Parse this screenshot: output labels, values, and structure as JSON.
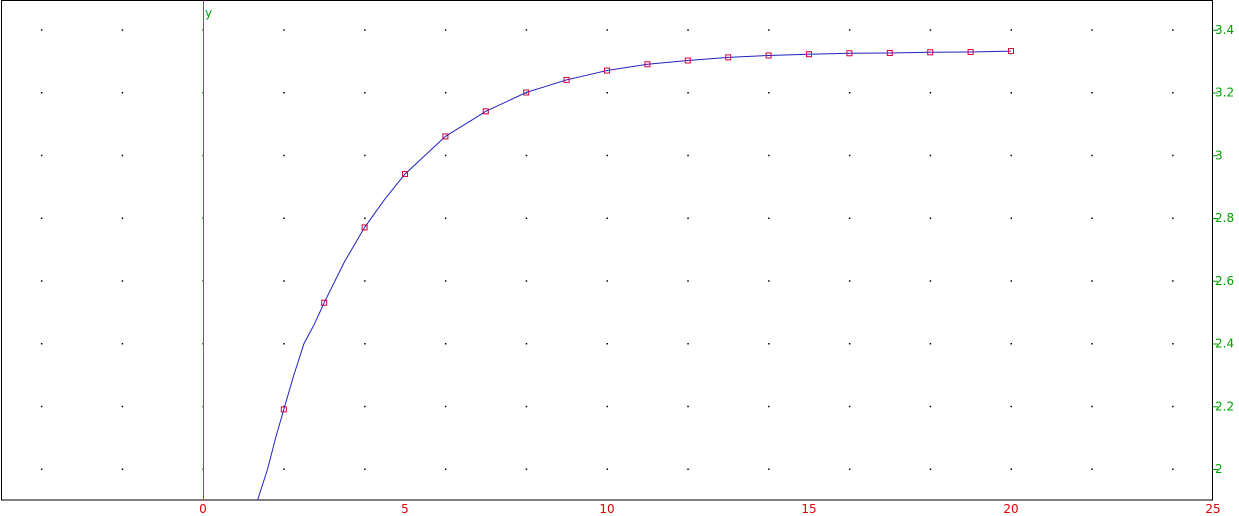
{
  "chart_data": {
    "type": "line",
    "xlabel": "",
    "ylabel": "y",
    "xlim": [
      -5,
      25
    ],
    "ylim": [
      1.9,
      3.5
    ],
    "x_ticks": [
      "0",
      "5",
      "10",
      "15",
      "20",
      "25"
    ],
    "y_ticks": [
      "2",
      "2.2",
      "2.4",
      "2.6",
      "2.8",
      "3",
      "3.2",
      "3.4"
    ],
    "grid": "dots",
    "colors": {
      "axis_y": "#00a000",
      "axis_x_ticks": "#e00000",
      "curve": "#2020c0",
      "markers": "#d00040",
      "grid": "#000000"
    },
    "series": [
      {
        "kind": "curve",
        "x": [
          1.35,
          1.6,
          1.8,
          2,
          2.25,
          2.5,
          2.75,
          3,
          3.5,
          4,
          4.5,
          5,
          5.5,
          6,
          6.5,
          7,
          7.5,
          8,
          8.5,
          9,
          9.5,
          10,
          11,
          12,
          13,
          14,
          15,
          16,
          17,
          18,
          19,
          20
        ],
        "y": [
          1.9,
          2.0,
          2.1,
          2.19,
          2.3,
          2.4,
          2.46,
          2.53,
          2.66,
          2.77,
          2.86,
          2.94,
          3.0,
          3.06,
          3.1,
          3.14,
          3.17,
          3.2,
          3.22,
          3.24,
          3.255,
          3.27,
          3.29,
          3.302,
          3.312,
          3.318,
          3.322,
          3.325,
          3.326,
          3.328,
          3.329,
          3.332
        ]
      },
      {
        "kind": "markers",
        "x": [
          2,
          3,
          4,
          5,
          6,
          7,
          8,
          9,
          10,
          11,
          12,
          13,
          14,
          15,
          16,
          17,
          18,
          19,
          20
        ],
        "y": [
          2.19,
          2.53,
          2.77,
          2.94,
          3.06,
          3.14,
          3.2,
          3.24,
          3.27,
          3.29,
          3.302,
          3.312,
          3.318,
          3.322,
          3.325,
          3.326,
          3.328,
          3.329,
          3.332
        ]
      }
    ]
  }
}
